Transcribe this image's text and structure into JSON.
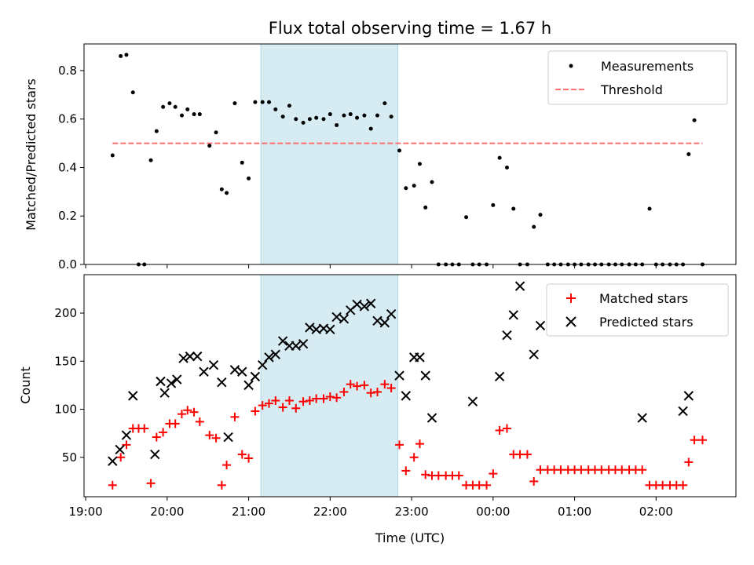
{
  "chart_data": {
    "title": "Flux total observing time = 1.67 h",
    "xlabel": "Time (UTC)",
    "x_unit": "hours UTC (values past 24 are after midnight)",
    "x_ticks": [
      {
        "value": 19,
        "label": "19:00"
      },
      {
        "value": 20,
        "label": "20:00"
      },
      {
        "value": 21,
        "label": "21:00"
      },
      {
        "value": 22,
        "label": "22:00"
      },
      {
        "value": 23,
        "label": "23:00"
      },
      {
        "value": 24,
        "label": "00:00"
      },
      {
        "value": 25,
        "label": "01:00"
      },
      {
        "value": 26,
        "label": "02:00"
      }
    ],
    "xlim": [
      18.98,
      26.98
    ],
    "shaded_interval": [
      21.15,
      22.83
    ],
    "top": {
      "type": "scatter",
      "ylabel": "Matched/Predicted stars",
      "ylim": [
        0,
        0.91
      ],
      "y_ticks": [
        {
          "value": 0.0,
          "label": "0.0"
        },
        {
          "value": 0.2,
          "label": "0.2"
        },
        {
          "value": 0.4,
          "label": "0.4"
        },
        {
          "value": 0.6,
          "label": "0.6"
        },
        {
          "value": 0.8,
          "label": "0.8"
        }
      ],
      "threshold": {
        "name": "Threshold",
        "value": 0.5,
        "x_range": [
          19.33,
          26.57
        ],
        "color": "#ff7070"
      },
      "measurements": {
        "name": "Measurements",
        "color": "#000000",
        "x": [
          19.33,
          19.43,
          19.5,
          19.58,
          19.65,
          19.72,
          19.8,
          19.87,
          19.95,
          20.03,
          20.1,
          20.18,
          20.25,
          20.33,
          20.4,
          20.52,
          20.6,
          20.67,
          20.73,
          20.83,
          20.92,
          21.0,
          21.08,
          21.17,
          21.25,
          21.33,
          21.42,
          21.5,
          21.58,
          21.67,
          21.75,
          21.83,
          21.92,
          22.0,
          22.08,
          22.17,
          22.25,
          22.33,
          22.42,
          22.5,
          22.58,
          22.67,
          22.75,
          22.85,
          22.93,
          23.03,
          23.1,
          23.17,
          23.25,
          23.33,
          23.42,
          23.5,
          23.58,
          23.67,
          23.75,
          23.83,
          23.92,
          24.0,
          24.08,
          24.17,
          24.25,
          24.33,
          24.42,
          24.5,
          24.58,
          24.67,
          24.75,
          24.83,
          24.92,
          25.0,
          25.08,
          25.17,
          25.25,
          25.33,
          25.42,
          25.5,
          25.58,
          25.67,
          25.75,
          25.83,
          25.92,
          26.0,
          26.08,
          26.17,
          26.25,
          26.33,
          26.4,
          26.57
        ],
        "y": [
          0.45,
          0.86,
          0.865,
          0.71,
          0.0,
          0.0,
          0.43,
          0.55,
          0.65,
          0.665,
          0.65,
          0.615,
          0.64,
          0.62,
          0.62,
          0.49,
          0.545,
          0.31,
          0.295,
          0.665,
          0.42,
          0.355,
          0.67,
          0.67,
          0.67,
          0.64,
          0.61,
          0.655,
          0.6,
          0.585,
          0.6,
          0.605,
          0.6,
          0.62,
          0.575,
          0.615,
          0.62,
          0.605,
          0.615,
          0.56,
          0.615,
          0.665,
          0.61,
          0.47,
          0.315,
          0.325,
          0.415,
          0.235,
          0.34,
          0.0,
          0.0,
          0.0,
          0.0,
          0.195,
          0.0,
          0.0,
          0.0,
          0.245,
          0.44,
          0.4,
          0.23,
          0.0,
          0.0,
          0.155,
          0.205,
          0.0,
          0.0,
          0.0,
          0.0,
          0.0,
          0.0,
          0.0,
          0.0,
          0.0,
          0.0,
          0.0,
          0.0,
          0.0,
          0.0,
          0.0,
          0.23,
          0.0,
          0.0,
          0.0,
          0.0,
          0.0,
          0.455,
          0.0
        ]
      },
      "extra_point": {
        "x": 26.47,
        "y": 0.595
      }
    },
    "bottom": {
      "type": "scatter",
      "ylabel": "Count",
      "ylim": [
        9,
        240
      ],
      "y_ticks": [
        {
          "value": 50,
          "label": "50"
        },
        {
          "value": 100,
          "label": "100"
        },
        {
          "value": 150,
          "label": "150"
        },
        {
          "value": 200,
          "label": "200"
        }
      ],
      "matched": {
        "name": "Matched stars",
        "color": "#ff0000",
        "x": [
          19.33,
          19.43,
          19.5,
          19.58,
          19.65,
          19.72,
          19.8,
          19.87,
          19.95,
          20.03,
          20.1,
          20.18,
          20.25,
          20.33,
          20.4,
          20.52,
          20.6,
          20.67,
          20.73,
          20.83,
          20.92,
          21.0,
          21.08,
          21.17,
          21.25,
          21.33,
          21.42,
          21.5,
          21.58,
          21.67,
          21.75,
          21.83,
          21.92,
          22.0,
          22.08,
          22.17,
          22.25,
          22.33,
          22.42,
          22.5,
          22.58,
          22.67,
          22.75,
          22.85,
          22.93,
          23.03,
          23.1,
          23.17,
          23.25,
          23.33,
          23.42,
          23.5,
          23.58,
          23.67,
          23.75,
          23.83,
          23.92,
          24.0,
          24.08,
          24.17,
          24.25,
          24.33,
          24.42,
          24.5,
          24.58,
          24.67,
          24.75,
          24.83,
          24.92,
          25.0,
          25.08,
          25.17,
          25.25,
          25.33,
          25.42,
          25.5,
          25.58,
          25.67,
          25.75,
          25.83,
          25.92,
          26.0,
          26.08,
          26.17,
          26.25,
          26.33,
          26.4,
          26.47,
          26.57
        ],
        "y": [
          21,
          50,
          63,
          80,
          80,
          80,
          23,
          71,
          76,
          85,
          85,
          95,
          99,
          97,
          87,
          73,
          70,
          21,
          42,
          92,
          53,
          49,
          98,
          104,
          106,
          109,
          102,
          109,
          101,
          108,
          109,
          111,
          111,
          113,
          112,
          118,
          126,
          124,
          125,
          117,
          118,
          126,
          122,
          63,
          36,
          50,
          64,
          32,
          31,
          31,
          31,
          31,
          31,
          21,
          21,
          21,
          21,
          33,
          78,
          80,
          53,
          53,
          53,
          25,
          37,
          37,
          37,
          37,
          37,
          37,
          37,
          37,
          37,
          37,
          37,
          37,
          37,
          37,
          37,
          37,
          21,
          21,
          21,
          21,
          21,
          21,
          45,
          68,
          68
        ]
      },
      "predicted": {
        "name": "Predicted stars",
        "color": "#000000",
        "x": [
          19.33,
          19.42,
          19.5,
          19.58,
          19.85,
          19.92,
          19.97,
          20.05,
          20.12,
          20.2,
          20.28,
          20.37,
          20.45,
          20.57,
          20.67,
          20.75,
          20.83,
          20.92,
          21.0,
          21.08,
          21.17,
          21.25,
          21.33,
          21.42,
          21.5,
          21.58,
          21.67,
          21.75,
          21.83,
          21.92,
          22.0,
          22.08,
          22.17,
          22.25,
          22.33,
          22.42,
          22.5,
          22.58,
          22.67,
          22.75,
          22.85,
          22.93,
          23.03,
          23.1,
          23.17,
          23.25,
          23.33,
          23.75,
          24.0,
          24.08,
          24.17,
          24.25,
          24.33,
          24.42,
          24.5,
          24.58,
          24.67,
          24.75,
          24.83,
          24.92,
          25.0,
          25.08,
          25.17,
          25.25,
          25.33,
          25.42,
          25.5,
          25.58,
          25.67,
          25.75,
          25.83,
          25.92,
          26.0,
          26.08,
          26.17,
          26.25,
          26.33,
          26.4,
          26.47,
          26.57
        ],
        "y": [
          46,
          58,
          73,
          114,
          53,
          129,
          117,
          127,
          131,
          153,
          155,
          155,
          139,
          146,
          128,
          71,
          141,
          139,
          125,
          134,
          146,
          154,
          157,
          171,
          166,
          166,
          168,
          185,
          183,
          184,
          183,
          196,
          194,
          203,
          209,
          207,
          210,
          192,
          190,
          199,
          135,
          114,
          154,
          154,
          135,
          91,
          null,
          108,
          null,
          134,
          177,
          198,
          228,
          null,
          157,
          187,
          null,
          null,
          null,
          null,
          null,
          null,
          null,
          null,
          null,
          null,
          null,
          null,
          null,
          null,
          91,
          null,
          null,
          null,
          null,
          null,
          98,
          114,
          null,
          null
        ]
      },
      "predicted_visible_x": [
        19.33,
        19.42,
        19.5,
        19.58,
        19.85,
        19.92,
        19.97,
        20.05,
        20.12,
        20.2,
        20.28,
        20.37,
        20.45,
        20.57,
        20.67,
        20.75,
        20.83,
        20.92,
        21.0,
        21.08,
        21.17,
        21.25,
        21.33,
        21.42,
        21.5,
        21.58,
        21.67,
        21.75,
        21.83,
        21.92,
        22.0,
        22.08,
        22.17,
        22.25,
        22.33,
        22.42,
        22.5,
        22.58,
        22.67,
        22.75,
        22.85,
        22.93,
        23.03,
        23.1,
        23.17,
        23.25,
        23.33,
        23.75,
        24.08,
        24.17,
        24.25,
        24.33,
        24.5,
        24.58,
        25.83,
        26.33,
        26.4
      ]
    },
    "legend_top": {
      "position": "top-right",
      "items": [
        "Measurements",
        "Threshold"
      ]
    },
    "legend_bottom": {
      "position": "top-right",
      "items": [
        "Matched stars",
        "Predicted stars"
      ]
    }
  }
}
